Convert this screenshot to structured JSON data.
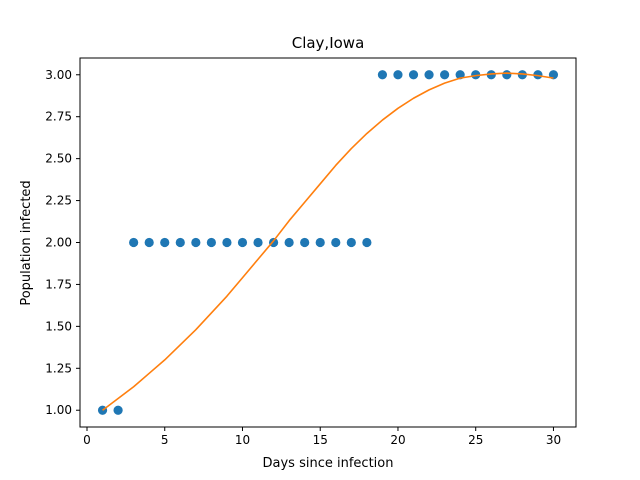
{
  "chart_data": {
    "type": "scatter",
    "title": "Clay,Iowa",
    "xlabel": "Days since infection",
    "ylabel": "Population infected",
    "xlim": [
      -0.45,
      31.45
    ],
    "ylim": [
      0.9,
      3.1
    ],
    "xticks": [
      0,
      5,
      10,
      15,
      20,
      25,
      30
    ],
    "xtick_labels": [
      "0",
      "5",
      "10",
      "15",
      "20",
      "25",
      "30"
    ],
    "yticks": [
      1.0,
      1.25,
      1.5,
      1.75,
      2.0,
      2.25,
      2.5,
      2.75,
      3.0
    ],
    "ytick_labels": [
      "1.00",
      "1.25",
      "1.50",
      "1.75",
      "2.00",
      "2.25",
      "2.50",
      "2.75",
      "3.00"
    ],
    "grid": false,
    "series": [
      {
        "kind": "scatter",
        "color": "#1f77b4",
        "x": [
          1,
          2,
          3,
          4,
          5,
          6,
          7,
          8,
          9,
          10,
          11,
          12,
          13,
          14,
          15,
          16,
          17,
          18,
          19,
          20,
          21,
          22,
          23,
          24,
          25,
          26,
          27,
          28,
          29,
          30
        ],
        "y": [
          1,
          1,
          2,
          2,
          2,
          2,
          2,
          2,
          2,
          2,
          2,
          2,
          2,
          2,
          2,
          2,
          2,
          2,
          3,
          3,
          3,
          3,
          3,
          3,
          3,
          3,
          3,
          3,
          3,
          3
        ]
      },
      {
        "kind": "line",
        "color": "#ff7f0e",
        "x": [
          1,
          2,
          3,
          4,
          5,
          6,
          7,
          8,
          9,
          10,
          11,
          12,
          13,
          14,
          15,
          16,
          17,
          18,
          19,
          20,
          21,
          22,
          23,
          24,
          25,
          26,
          27,
          28,
          29,
          30
        ],
        "y": [
          1.0,
          1.07,
          1.14,
          1.22,
          1.3,
          1.39,
          1.48,
          1.58,
          1.68,
          1.79,
          1.9,
          2.01,
          2.13,
          2.24,
          2.35,
          2.46,
          2.56,
          2.65,
          2.73,
          2.8,
          2.86,
          2.91,
          2.95,
          2.98,
          2.995,
          3.005,
          3.01,
          3.005,
          2.995,
          2.98
        ]
      }
    ]
  }
}
